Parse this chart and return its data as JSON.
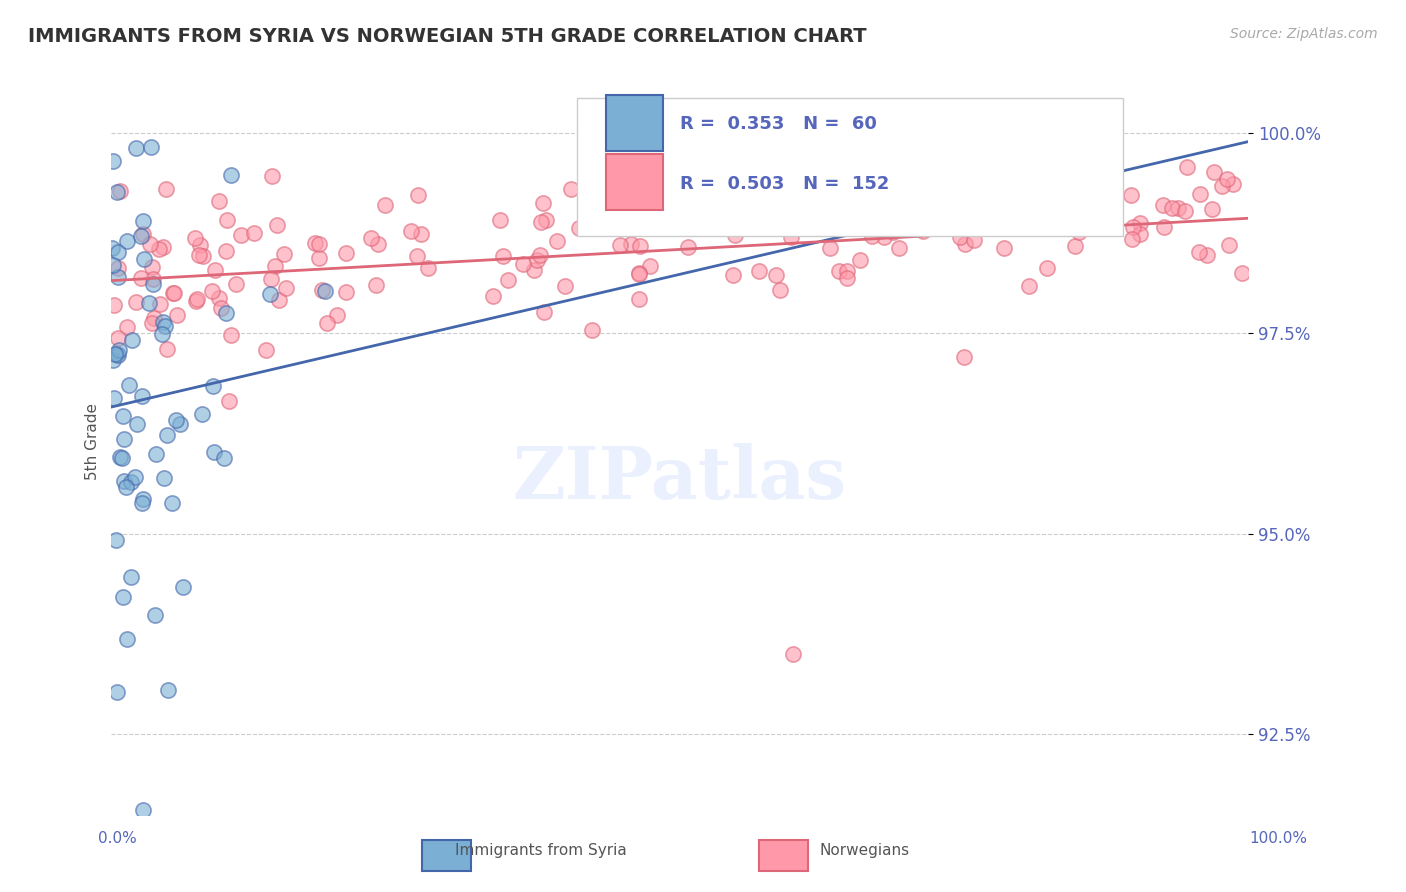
{
  "title": "IMMIGRANTS FROM SYRIA VS NORWEGIAN 5TH GRADE CORRELATION CHART",
  "source": "Source: ZipAtlas.com",
  "ylabel": "5th Grade",
  "xlim": [
    0.0,
    100.0
  ],
  "ylim": [
    91.5,
    100.8
  ],
  "yticks": [
    92.5,
    95.0,
    97.5,
    100.0
  ],
  "ytick_labels": [
    "92.5%",
    "95.0%",
    "97.5%",
    "100.0%"
  ],
  "blue_R": 0.353,
  "blue_N": 60,
  "pink_R": 0.503,
  "pink_N": 152,
  "blue_marker_color": "#7BAFD4",
  "pink_marker_color": "#FF99AA",
  "trend_blue": "#4466AA",
  "trend_pink": "#DD6677",
  "legend_blue_label": "Immigrants from Syria",
  "legend_pink_label": "Norwegians",
  "background_color": "#FFFFFF",
  "grid_color": "#CCCCCC",
  "axis_label_color": "#5566BB",
  "title_color": "#333333",
  "seed": 42
}
